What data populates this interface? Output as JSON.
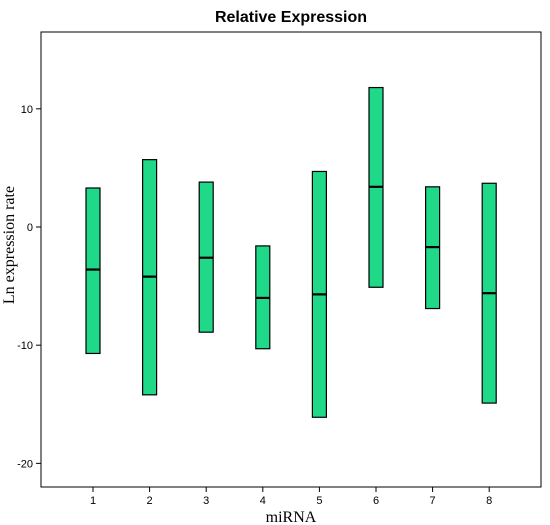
{
  "chart_data": {
    "type": "box",
    "title": "Relative Expression",
    "xlabel": "miRNA",
    "ylabel": "Ln expression rate",
    "categories": [
      "1",
      "2",
      "3",
      "4",
      "5",
      "6",
      "7",
      "8"
    ],
    "boxes": [
      {
        "category": "1",
        "high": 3.3,
        "median": -3.6,
        "low": -10.7
      },
      {
        "category": "2",
        "high": 5.7,
        "median": -4.2,
        "low": -14.2
      },
      {
        "category": "3",
        "high": 3.8,
        "median": -2.6,
        "low": -8.9
      },
      {
        "category": "4",
        "high": -1.6,
        "median": -6.0,
        "low": -10.3
      },
      {
        "category": "5",
        "high": 4.7,
        "median": -5.7,
        "low": -16.1
      },
      {
        "category": "6",
        "high": 11.8,
        "median": 3.4,
        "low": -5.1
      },
      {
        "category": "7",
        "high": 3.4,
        "median": -1.7,
        "low": -6.9
      },
      {
        "category": "8",
        "high": 3.7,
        "median": -5.6,
        "low": -14.9
      }
    ],
    "yticks": [
      10,
      0,
      -10,
      -20
    ],
    "ylim": [
      -22,
      16.5
    ],
    "grid": false,
    "fill_color": "#1fd888",
    "stroke_color": "#000000"
  }
}
